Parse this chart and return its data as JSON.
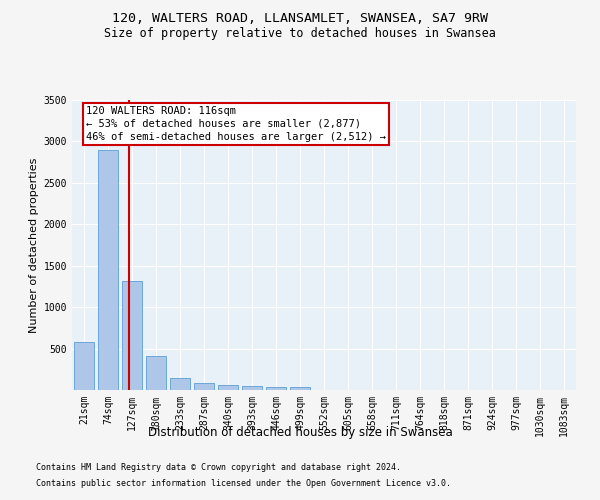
{
  "title_line1": "120, WALTERS ROAD, LLANSAMLET, SWANSEA, SA7 9RW",
  "title_line2": "Size of property relative to detached houses in Swansea",
  "xlabel": "Distribution of detached houses by size in Swansea",
  "ylabel": "Number of detached properties",
  "categories": [
    "21sqm",
    "74sqm",
    "127sqm",
    "180sqm",
    "233sqm",
    "287sqm",
    "340sqm",
    "393sqm",
    "446sqm",
    "499sqm",
    "552sqm",
    "605sqm",
    "658sqm",
    "711sqm",
    "764sqm",
    "818sqm",
    "871sqm",
    "924sqm",
    "977sqm",
    "1030sqm",
    "1083sqm"
  ],
  "values": [
    575,
    2900,
    1310,
    410,
    150,
    80,
    55,
    50,
    40,
    35,
    0,
    0,
    0,
    0,
    0,
    0,
    0,
    0,
    0,
    0,
    0
  ],
  "bar_color": "#aec6e8",
  "bar_edge_color": "#5a9fd4",
  "property_line_x": 1.87,
  "property_line_color": "#cc0000",
  "annotation_title": "120 WALTERS ROAD: 116sqm",
  "annotation_line1": "← 53% of detached houses are smaller (2,877)",
  "annotation_line2": "46% of semi-detached houses are larger (2,512) →",
  "annotation_box_color": "#cc0000",
  "ylim": [
    0,
    3500
  ],
  "yticks": [
    0,
    500,
    1000,
    1500,
    2000,
    2500,
    3000,
    3500
  ],
  "footer_line1": "Contains HM Land Registry data © Crown copyright and database right 2024.",
  "footer_line2": "Contains public sector information licensed under the Open Government Licence v3.0.",
  "bg_color": "#e8f0f8",
  "grid_color": "#ffffff",
  "title_fontsize": 9.5,
  "subtitle_fontsize": 8.5,
  "axis_label_fontsize": 8,
  "tick_fontsize": 7,
  "annotation_fontsize": 7.5,
  "footer_fontsize": 6
}
